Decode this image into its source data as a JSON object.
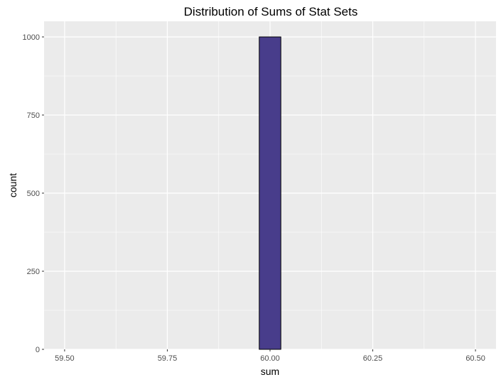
{
  "chart_data": {
    "type": "bar",
    "title": "Distribution of Sums of Stat Sets",
    "xlabel": "sum",
    "ylabel": "count",
    "xlim": [
      59.45,
      60.55
    ],
    "ylim": [
      0,
      1050
    ],
    "x_ticks": [
      59.5,
      59.75,
      60.0,
      60.25,
      60.5
    ],
    "x_tick_labels": [
      "59.50",
      "59.75",
      "60.00",
      "60.25",
      "60.50"
    ],
    "y_ticks": [
      0,
      250,
      500,
      750,
      1000
    ],
    "y_tick_labels": [
      "0",
      "250",
      "500",
      "750",
      "1000"
    ],
    "bin_width": 0.0526,
    "bins": [
      {
        "x": 59.5,
        "count": 0
      },
      {
        "x": 59.553,
        "count": 0
      },
      {
        "x": 59.605,
        "count": 0
      },
      {
        "x": 59.658,
        "count": 0
      },
      {
        "x": 59.711,
        "count": 0
      },
      {
        "x": 59.763,
        "count": 0
      },
      {
        "x": 59.816,
        "count": 0
      },
      {
        "x": 59.868,
        "count": 0
      },
      {
        "x": 59.921,
        "count": 0
      },
      {
        "x": 59.974,
        "count": 0
      },
      {
        "x": 60.0,
        "count": 1000
      },
      {
        "x": 60.053,
        "count": 0
      },
      {
        "x": 60.105,
        "count": 0
      },
      {
        "x": 60.158,
        "count": 0
      },
      {
        "x": 60.211,
        "count": 0
      },
      {
        "x": 60.263,
        "count": 0
      },
      {
        "x": 60.316,
        "count": 0
      },
      {
        "x": 60.368,
        "count": 0
      },
      {
        "x": 60.421,
        "count": 0
      },
      {
        "x": 60.474,
        "count": 0
      }
    ],
    "grid": true,
    "colors": {
      "bar_fill": "#483D8B",
      "bar_outline": "#000000",
      "panel_background": "#EBEBEB",
      "grid_line": "#FFFFFF"
    }
  }
}
